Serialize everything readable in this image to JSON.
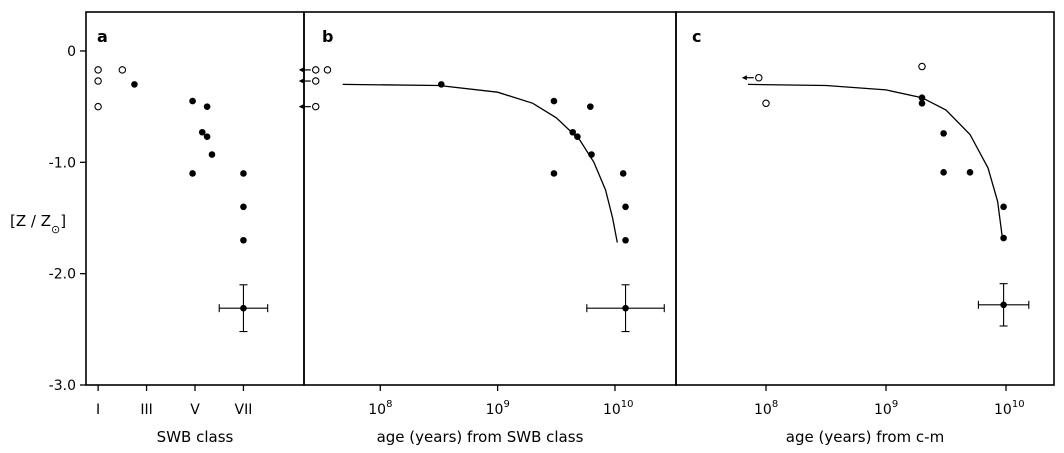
{
  "y_axis": {
    "label_main": "[Z / Z",
    "label_sub": "⊙",
    "label_end": "]",
    "range": [
      -3.0,
      0.35
    ],
    "ticks": [
      {
        "value": 0,
        "label": "0"
      },
      {
        "value": -1.0,
        "label": "-1.0"
      },
      {
        "value": -2.0,
        "label": "-2.0"
      },
      {
        "value": -3.0,
        "label": "-3.0"
      }
    ]
  },
  "chart_data": [
    {
      "panel": "a",
      "type": "scatter",
      "xlabel": "SWB class",
      "xscale": "linear",
      "xlim": [
        0.5,
        9.5
      ],
      "xticks": [
        {
          "value": 1,
          "label": "I"
        },
        {
          "value": 3,
          "label": "III"
        },
        {
          "value": 5,
          "label": "V"
        },
        {
          "value": 7,
          "label": "VII"
        }
      ],
      "open_points": [
        {
          "x": 1.0,
          "y": -0.17
        },
        {
          "x": 1.0,
          "y": -0.27
        },
        {
          "x": 1.0,
          "y": -0.5
        },
        {
          "x": 2.0,
          "y": -0.17
        }
      ],
      "filled_points": [
        {
          "x": 2.5,
          "y": -0.3
        },
        {
          "x": 4.9,
          "y": -0.45
        },
        {
          "x": 5.5,
          "y": -0.5
        },
        {
          "x": 5.3,
          "y": -0.73
        },
        {
          "x": 5.5,
          "y": -0.77
        },
        {
          "x": 5.7,
          "y": -0.93
        },
        {
          "x": 4.9,
          "y": -1.1
        },
        {
          "x": 7.0,
          "y": -1.1
        },
        {
          "x": 7.0,
          "y": -1.4
        },
        {
          "x": 7.0,
          "y": -1.7
        }
      ],
      "error_bar": {
        "x": 7.0,
        "y": -2.31,
        "xerr": 1.0,
        "yerr": 0.21
      }
    },
    {
      "panel": "b",
      "type": "scatter",
      "xlabel": "age (years) from SWB class",
      "xscale": "log",
      "xlim_log10": [
        7.35,
        10.52
      ],
      "xticks": [
        {
          "value": 8,
          "base": "10",
          "exp": "8"
        },
        {
          "value": 9,
          "base": "10",
          "exp": "9"
        },
        {
          "value": 10,
          "base": "10",
          "exp": "10"
        }
      ],
      "open_points": [
        {
          "x_log10": 7.45,
          "y": -0.17
        },
        {
          "x_log10": 7.45,
          "y": -0.27
        },
        {
          "x_log10": 7.45,
          "y": -0.5
        },
        {
          "x_log10": 7.55,
          "y": -0.17
        }
      ],
      "arrow_points": [
        {
          "x_log10": 7.45,
          "y": -0.17
        },
        {
          "x_log10": 7.45,
          "y": -0.27
        },
        {
          "x_log10": 7.45,
          "y": -0.5
        }
      ],
      "filled_points": [
        {
          "x_log10": 8.52,
          "y": -0.3
        },
        {
          "x_log10": 9.48,
          "y": -0.45
        },
        {
          "x_log10": 9.79,
          "y": -0.5
        },
        {
          "x_log10": 9.64,
          "y": -0.73
        },
        {
          "x_log10": 9.68,
          "y": -0.77
        },
        {
          "x_log10": 9.8,
          "y": -0.93
        },
        {
          "x_log10": 9.48,
          "y": -1.1
        },
        {
          "x_log10": 10.07,
          "y": -1.1
        },
        {
          "x_log10": 10.09,
          "y": -1.4
        },
        {
          "x_log10": 10.09,
          "y": -1.7
        }
      ],
      "error_bar": {
        "x_log10": 10.09,
        "y": -2.31,
        "xerr_log10": 0.33,
        "yerr": 0.21
      },
      "curve": [
        {
          "x_log10": 7.68,
          "y": -0.3
        },
        {
          "x_log10": 8.5,
          "y": -0.31
        },
        {
          "x_log10": 9.0,
          "y": -0.37
        },
        {
          "x_log10": 9.3,
          "y": -0.47
        },
        {
          "x_log10": 9.5,
          "y": -0.6
        },
        {
          "x_log10": 9.7,
          "y": -0.8
        },
        {
          "x_log10": 9.82,
          "y": -1.0
        },
        {
          "x_log10": 9.92,
          "y": -1.25
        },
        {
          "x_log10": 9.98,
          "y": -1.5
        },
        {
          "x_log10": 10.02,
          "y": -1.72
        }
      ]
    },
    {
      "panel": "c",
      "type": "scatter",
      "xlabel": "age (years) from c-m",
      "xscale": "log",
      "xlim_log10": [
        7.25,
        10.4
      ],
      "xticks": [
        {
          "value": 8,
          "base": "10",
          "exp": "8"
        },
        {
          "value": 9,
          "base": "10",
          "exp": "9"
        },
        {
          "value": 10,
          "base": "10",
          "exp": "10"
        }
      ],
      "open_points": [
        {
          "x_log10": 7.94,
          "y": -0.24
        },
        {
          "x_log10": 8.0,
          "y": -0.47
        },
        {
          "x_log10": 9.3,
          "y": -0.14
        }
      ],
      "arrow_points": [
        {
          "x_log10": 7.94,
          "y": -0.24
        }
      ],
      "filled_points": [
        {
          "x_log10": 9.3,
          "y": -0.42
        },
        {
          "x_log10": 9.3,
          "y": -0.47
        },
        {
          "x_log10": 9.48,
          "y": -0.74
        },
        {
          "x_log10": 9.48,
          "y": -1.09
        },
        {
          "x_log10": 9.7,
          "y": -1.09
        },
        {
          "x_log10": 9.98,
          "y": -1.4
        },
        {
          "x_log10": 9.98,
          "y": -1.68
        }
      ],
      "error_bar": {
        "x_log10": 9.98,
        "y": -2.28,
        "xerr_log10": 0.21,
        "yerr": 0.19
      },
      "curve": [
        {
          "x_log10": 7.85,
          "y": -0.3
        },
        {
          "x_log10": 8.5,
          "y": -0.31
        },
        {
          "x_log10": 9.0,
          "y": -0.35
        },
        {
          "x_log10": 9.3,
          "y": -0.42
        },
        {
          "x_log10": 9.5,
          "y": -0.53
        },
        {
          "x_log10": 9.7,
          "y": -0.75
        },
        {
          "x_log10": 9.85,
          "y": -1.05
        },
        {
          "x_log10": 9.93,
          "y": -1.35
        },
        {
          "x_log10": 9.97,
          "y": -1.68
        }
      ]
    }
  ]
}
